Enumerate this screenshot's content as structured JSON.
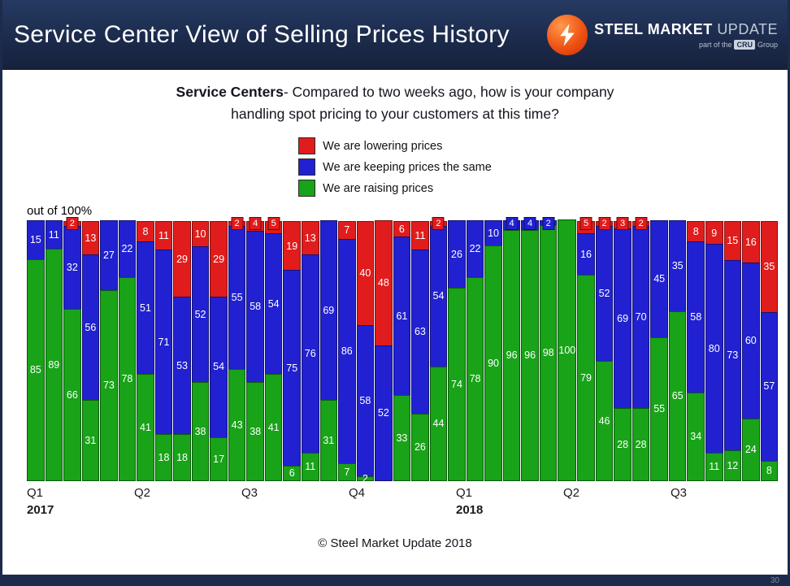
{
  "header": {
    "title": "Service Center View of Selling Prices History",
    "logo": {
      "steel": "STEEL",
      "market": "MARKET",
      "update": "UPDATE",
      "tagline_prefix": "part of the",
      "tagline_box": "CRU",
      "tagline_suffix": "Group"
    }
  },
  "question": {
    "bold": "Service Centers",
    "line1_rest": "- Compared to two weeks ago, how is your company",
    "line2": "handling spot pricing to your customers at this time?"
  },
  "footer": "© Steel Market Update 2018",
  "slide_number": "30",
  "chart_data": {
    "type": "bar",
    "stacked": true,
    "title": "Service Centers- Compared to two weeks ago, how is your company handling spot pricing to your customers at this time?",
    "ylabel": "out of 100%",
    "ylim": [
      0,
      100
    ],
    "legend_position": "top-center, vertical list",
    "grid": false,
    "series": [
      {
        "key": "lowering",
        "label": "We are lowering prices",
        "color": "#e11c1c"
      },
      {
        "key": "same",
        "label": "We are keeping prices the same",
        "color": "#2121d1"
      },
      {
        "key": "raising",
        "label": "We are raising prices",
        "color": "#18a318"
      }
    ],
    "stack_order_bottom_to_top": [
      "raising",
      "same",
      "lowering"
    ],
    "x_ticks": [
      {
        "label": "Q1",
        "year": "2017"
      },
      {
        "label": "Q2"
      },
      {
        "label": "Q3"
      },
      {
        "label": "Q4"
      },
      {
        "label": "Q1",
        "year": "2018"
      },
      {
        "label": "Q2"
      },
      {
        "label": "Q3"
      }
    ],
    "bars": [
      {
        "raising": 85,
        "same": 15,
        "lowering": 0
      },
      {
        "raising": 89,
        "same": 11,
        "lowering": 0
      },
      {
        "raising": 66,
        "same": 32,
        "lowering": 2
      },
      {
        "raising": 31,
        "same": 56,
        "lowering": 13
      },
      {
        "raising": 73,
        "same": 27,
        "lowering": 0
      },
      {
        "raising": 78,
        "same": 22,
        "lowering": 0
      },
      {
        "raising": 41,
        "same": 51,
        "lowering": 8
      },
      {
        "raising": 18,
        "same": 71,
        "lowering": 11
      },
      {
        "raising": 18,
        "same": 53,
        "lowering": 29
      },
      {
        "raising": 38,
        "same": 52,
        "lowering": 10
      },
      {
        "raising": 17,
        "same": 54,
        "lowering": 29
      },
      {
        "raising": 43,
        "same": 55,
        "lowering": 2
      },
      {
        "raising": 38,
        "same": 58,
        "lowering": 4
      },
      {
        "raising": 41,
        "same": 54,
        "lowering": 5
      },
      {
        "raising": 6,
        "same": 75,
        "lowering": 19
      },
      {
        "raising": 11,
        "same": 76,
        "lowering": 13
      },
      {
        "raising": 31,
        "same": 69,
        "lowering": 0
      },
      {
        "raising": 7,
        "same": 86,
        "lowering": 7
      },
      {
        "raising": 2,
        "same": 58,
        "lowering": 40
      },
      {
        "raising": 0,
        "same": 52,
        "lowering": 48
      },
      {
        "raising": 33,
        "same": 61,
        "lowering": 6
      },
      {
        "raising": 26,
        "same": 63,
        "lowering": 11
      },
      {
        "raising": 44,
        "same": 54,
        "lowering": 2
      },
      {
        "raising": 74,
        "same": 26,
        "lowering": 0
      },
      {
        "raising": 78,
        "same": 22,
        "lowering": 0
      },
      {
        "raising": 90,
        "same": 10,
        "lowering": 0
      },
      {
        "raising": 96,
        "same": 4,
        "lowering": 0
      },
      {
        "raising": 96,
        "same": 4,
        "lowering": 0
      },
      {
        "raising": 98,
        "same": 2,
        "lowering": 0
      },
      {
        "raising": 100,
        "same": 0,
        "lowering": 0
      },
      {
        "raising": 79,
        "same": 16,
        "lowering": 5
      },
      {
        "raising": 46,
        "same": 52,
        "lowering": 2
      },
      {
        "raising": 28,
        "same": 69,
        "lowering": 3
      },
      {
        "raising": 28,
        "same": 70,
        "lowering": 2
      },
      {
        "raising": 55,
        "same": 45,
        "lowering": 0
      },
      {
        "raising": 65,
        "same": 35,
        "lowering": 0
      },
      {
        "raising": 34,
        "same": 58,
        "lowering": 8
      },
      {
        "raising": 11,
        "same": 80,
        "lowering": 9
      },
      {
        "raising": 12,
        "same": 73,
        "lowering": 15
      },
      {
        "raising": 24,
        "same": 60,
        "lowering": 16
      },
      {
        "raising": 8,
        "same": 57,
        "lowering": 35
      }
    ]
  }
}
